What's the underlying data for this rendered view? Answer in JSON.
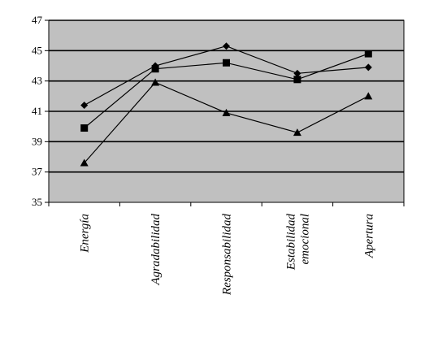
{
  "chart_data": {
    "type": "line",
    "title": "",
    "xlabel": "",
    "ylabel": "",
    "ylim": [
      35,
      47
    ],
    "yticks": [
      35,
      37,
      39,
      41,
      43,
      45,
      47
    ],
    "grid": true,
    "legend": "none",
    "plot_background": "#c0c0c0",
    "line_color": "#000000",
    "categories": [
      [
        "Energía"
      ],
      [
        "Agradabilidad"
      ],
      [
        "Responsabilidad"
      ],
      [
        "Estabilidad",
        "emocional"
      ],
      [
        "Apertura"
      ]
    ],
    "series": [
      {
        "marker": "diamond",
        "values": [
          41.4,
          44.0,
          45.3,
          43.5,
          43.9
        ]
      },
      {
        "marker": "square",
        "values": [
          39.9,
          43.8,
          44.2,
          43.1,
          44.8
        ]
      },
      {
        "marker": "triangle",
        "values": [
          37.6,
          42.9,
          40.9,
          39.6,
          42.0
        ]
      }
    ]
  }
}
